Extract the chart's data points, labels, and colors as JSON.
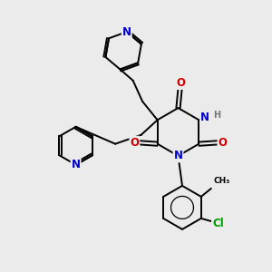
{
  "background_color": "#ebebeb",
  "bond_color": "#000000",
  "bond_width": 1.4,
  "dbl_sep": 0.07,
  "atom_colors": {
    "N": "#0000cc",
    "O": "#cc0000",
    "Cl": "#009900",
    "H": "#777777",
    "C": "#000000"
  },
  "fs": 8.5
}
